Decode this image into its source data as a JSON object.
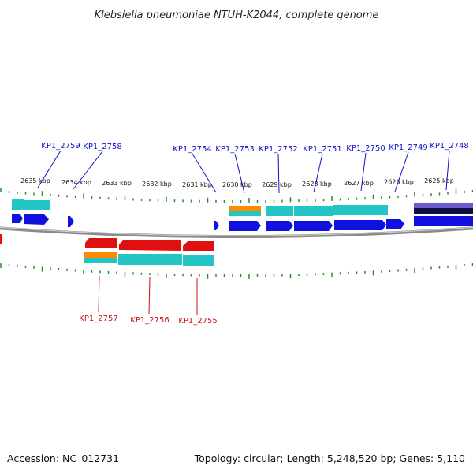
{
  "header": {
    "title": "Klebsiella pneumoniae NTUH-K2044, complete genome"
  },
  "footer": {
    "accession": "Accession: NC_012731",
    "summary": "Topology: circular; Length: 5,248,520 bp; Genes: 5,110"
  },
  "colors": {
    "backbone": "#8a8a8a",
    "tick": "#2a8a2a",
    "gene_forward": "#1010e0",
    "gene_reverse": "#e01010",
    "cds_cyan": "#22c4c4",
    "rna_orange": "#ff8c00",
    "purple": "#6a5acd",
    "top_label": "#1010c8",
    "bottom_label": "#cc1010"
  },
  "ruler_labels": [
    "2635 kbp",
    "2634 kbp",
    "2633 kbp",
    "2632 kbp",
    "2631 kbp",
    "2630 kbp",
    "2629 kbp",
    "2628 kbp",
    "2627 kbp",
    "2626 kbp",
    "2625 kbp"
  ],
  "genes_top": [
    "KP1_2759",
    "KP1_2758",
    "KP1_2754",
    "KP1_2753",
    "KP1_2752",
    "KP1_2751",
    "KP1_2750",
    "KP1_2749",
    "KP1_2748"
  ],
  "genes_bottom": [
    "KP1_2757",
    "KP1_2756",
    "KP1_2755"
  ]
}
